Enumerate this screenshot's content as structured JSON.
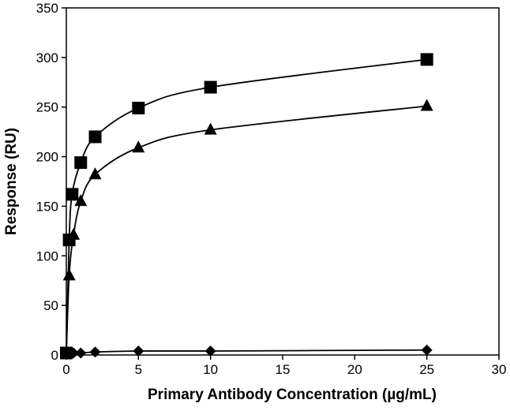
{
  "chart_data": {
    "type": "line",
    "title": "",
    "xlabel": "Primary Antibody Concentration (µg/mL)",
    "ylabel": "Response (RU)",
    "xlim": [
      0,
      30
    ],
    "ylim": [
      0,
      350
    ],
    "xticks": [
      0,
      5,
      10,
      15,
      20,
      25,
      30
    ],
    "yticks": [
      0,
      50,
      100,
      150,
      200,
      250,
      300,
      350
    ],
    "grid": false,
    "legend": "none",
    "line_color": "#000000",
    "series": [
      {
        "marker": "square",
        "x": [
          0,
          0.2,
          0.4,
          1,
          2,
          5,
          10,
          25
        ],
        "y": [
          2,
          116,
          162,
          194,
          220,
          249,
          270,
          298
        ]
      },
      {
        "marker": "triangle",
        "x": [
          0,
          0.2,
          0.5,
          1,
          2,
          5,
          10,
          25
        ],
        "y": [
          2,
          80,
          121,
          155,
          182,
          209,
          227,
          251
        ]
      },
      {
        "marker": "diamond",
        "x": [
          0,
          0.2,
          0.5,
          1,
          2,
          5,
          10,
          25
        ],
        "y": [
          1,
          1,
          2,
          2,
          3,
          4,
          4,
          5
        ]
      }
    ]
  }
}
